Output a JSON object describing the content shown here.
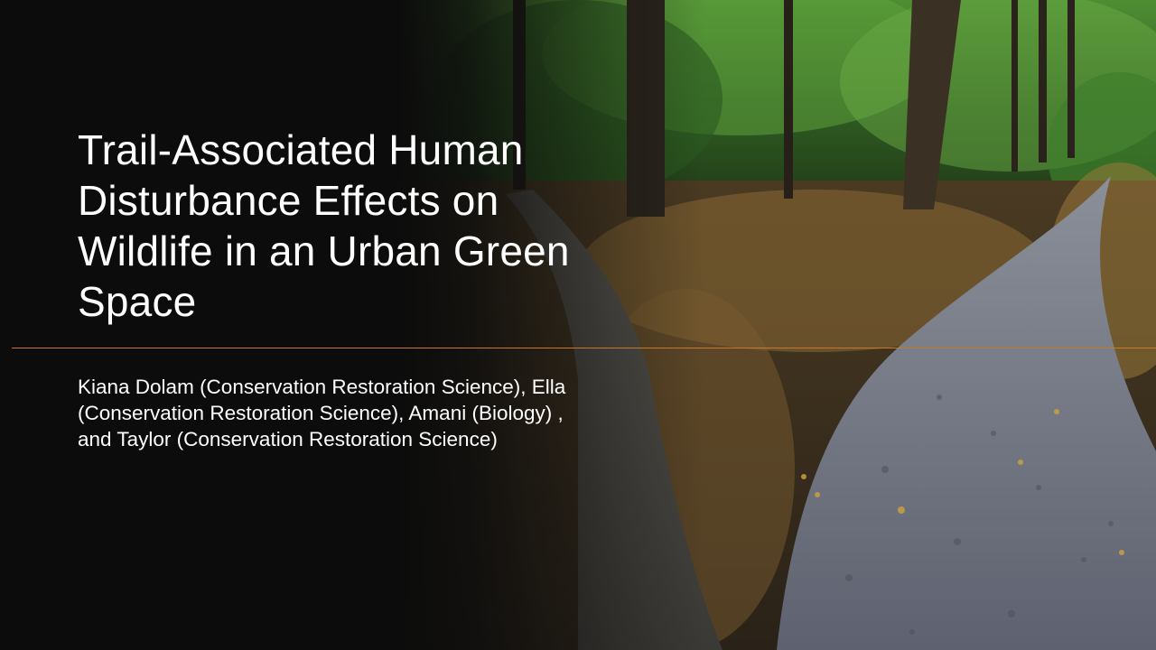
{
  "slide": {
    "title": "Trail-Associated Human Disturbance Effects on Wildlife in an Urban Green Space",
    "authors": "Kiana Dolam (Conservation Restoration Science), Ella (Conservation Restoration Science), Amani (Biology) , and Taylor (Conservation Restoration Science)"
  },
  "colors": {
    "background": "#0c0c0c",
    "text": "#ffffff",
    "divider": "#c8782e",
    "foliage": "#3f7a2c",
    "path": "#6b6f78",
    "leaves": "#a87a3a"
  }
}
